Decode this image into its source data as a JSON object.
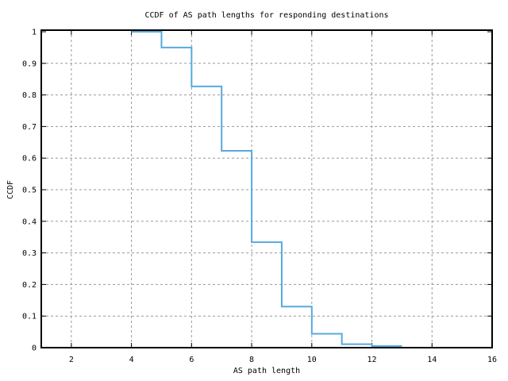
{
  "title": "CCDF of AS path lengths for responding destinations",
  "chart_data": {
    "type": "line",
    "subtype": "step-ccdf",
    "title": "CCDF of AS path lengths for responding destinations",
    "xlabel": "AS path length",
    "ylabel": "CCDF",
    "xlim": [
      1,
      16
    ],
    "ylim": [
      0,
      1
    ],
    "x_ticks": [
      2,
      4,
      6,
      8,
      10,
      12,
      14,
      16
    ],
    "x_tick_labels": [
      "2",
      "4",
      "6",
      "8",
      "10",
      "12",
      "14",
      "16"
    ],
    "y_ticks": [
      0,
      0.1,
      0.2,
      0.3,
      0.4,
      0.5,
      0.6,
      0.7,
      0.8,
      0.9,
      1
    ],
    "y_tick_labels": [
      "0",
      "0.1",
      "0.2",
      "0.3",
      "0.4",
      "0.5",
      "0.6",
      "0.7",
      "0.8",
      "0.9",
      "1"
    ],
    "grid": true,
    "legend": "none",
    "line_color": "#56aadf",
    "grid_color": "#999999",
    "border_color": "#000000",
    "steps": {
      "comment_structure": "ccdf[i] is the CCDF value on the interval [x[i], x[i+1])",
      "x": [
        4,
        5,
        6,
        7,
        8,
        9,
        10,
        11,
        12,
        13
      ],
      "ccdf": [
        1.0,
        0.95,
        0.827,
        0.623,
        0.334,
        0.13,
        0.044,
        0.011,
        0.005
      ]
    }
  }
}
